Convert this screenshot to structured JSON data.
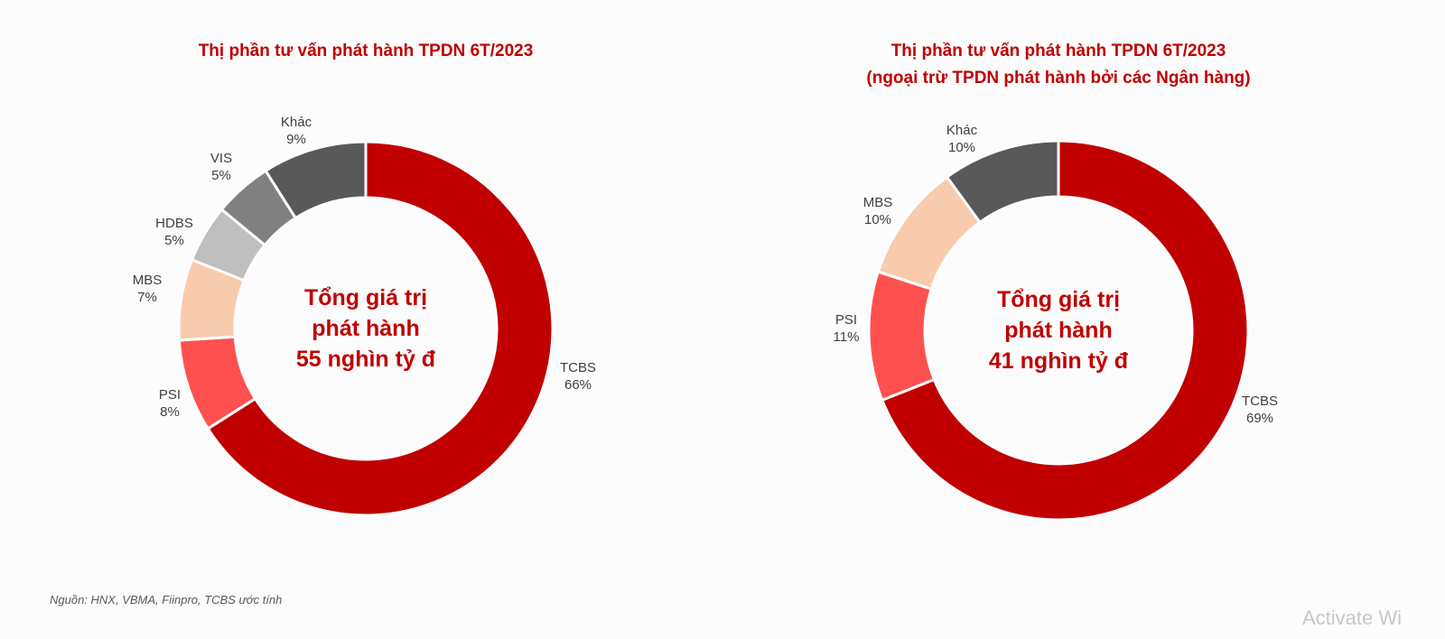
{
  "chart_data": [
    {
      "type": "pie",
      "variant": "donut",
      "title": "Thị phần tư vấn phát hành TPDN 6T/2023",
      "subtitle": "",
      "center_text": [
        "Tổng giá trị",
        "phát hành",
        "55 nghìn tỷ đ"
      ],
      "categories": [
        "TCBS",
        "PSI",
        "MBS",
        "HDBS",
        "VIS",
        "Khác"
      ],
      "values": [
        66,
        8,
        7,
        5,
        5,
        9
      ],
      "labels": [
        "66%",
        "8%",
        "7%",
        "5%",
        "5%",
        "9%"
      ],
      "colors": [
        "#C00000",
        "#FF5050",
        "#F8CBAD",
        "#BFBFBF",
        "#808080",
        "#595959"
      ],
      "start": "top",
      "direction": "clockwise"
    },
    {
      "type": "pie",
      "variant": "donut",
      "title": "Thị phần tư vấn phát hành TPDN 6T/2023",
      "subtitle": "(ngoại trừ TPDN phát hành bởi các Ngân hàng)",
      "center_text": [
        "Tổng giá trị",
        "phát hành",
        "41 nghìn tỷ đ"
      ],
      "categories": [
        "TCBS",
        "PSI",
        "MBS",
        "Khác"
      ],
      "values": [
        69,
        11,
        10,
        10
      ],
      "labels": [
        "69%",
        "11%",
        "10%",
        "10%"
      ],
      "colors": [
        "#C00000",
        "#FF5050",
        "#F8CBAD",
        "#595959"
      ],
      "start": "top",
      "direction": "clockwise"
    }
  ],
  "source": "Nguồn: HNX, VBMA, Fiinpro, TCBS ước tính",
  "watermark": "Activate Wi"
}
